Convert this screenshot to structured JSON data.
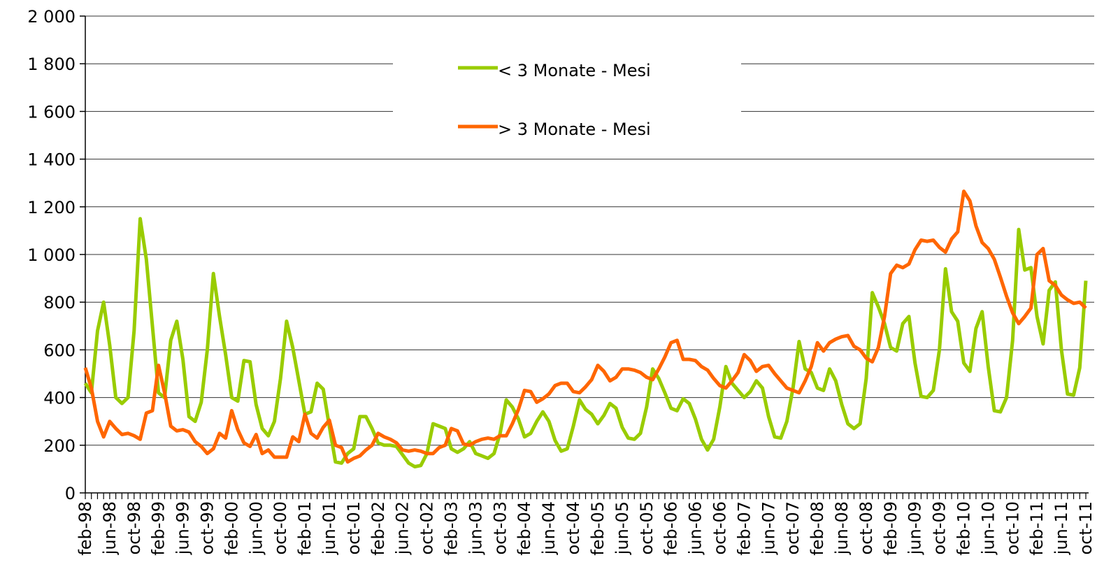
{
  "chart_data": {
    "type": "line",
    "categories": [
      "feb-98",
      null,
      null,
      null,
      "jun-98",
      null,
      null,
      null,
      "oct-98",
      null,
      null,
      null,
      "feb-99",
      null,
      null,
      null,
      "jun-99",
      null,
      null,
      null,
      "oct-99",
      null,
      null,
      null,
      "feb-00",
      null,
      null,
      null,
      "jun-00",
      null,
      null,
      null,
      "oct-00",
      null,
      null,
      null,
      "feb-01",
      null,
      null,
      null,
      "jun-01",
      null,
      null,
      null,
      "oct-01",
      null,
      null,
      null,
      "feb-02",
      null,
      null,
      null,
      "jun-02",
      null,
      null,
      null,
      "oct-02",
      null,
      null,
      null,
      "feb-03",
      null,
      null,
      null,
      "jun-03",
      null,
      null,
      null,
      "oct-03",
      null,
      null,
      null,
      "feb-04",
      null,
      null,
      null,
      "jun-04",
      null,
      null,
      null,
      "oct-04",
      null,
      null,
      null,
      "feb-05",
      null,
      null,
      null,
      "jun-05",
      null,
      null,
      null,
      "oct-05",
      null,
      null,
      null,
      "feb-06",
      null,
      null,
      null,
      "jun-06",
      null,
      null,
      null,
      "oct-06",
      null,
      null,
      null,
      "feb-07",
      null,
      null,
      null,
      "jun-07",
      null,
      null,
      null,
      "oct-07",
      null,
      null,
      null,
      "feb-08",
      null,
      null,
      null,
      "jun-08",
      null,
      null,
      null,
      "oct-08",
      null,
      null,
      null,
      "feb-09",
      null,
      null,
      null,
      "jun-09",
      null,
      null,
      null,
      "oct-09",
      null,
      null,
      null,
      "feb-10",
      null,
      null,
      null,
      "jun-10",
      null,
      null,
      null,
      "oct-10",
      null,
      null,
      null,
      "feb-11",
      null,
      null,
      null,
      "jun-11",
      null,
      null,
      null,
      "oct-11"
    ],
    "series": [
      {
        "name": "< 3 Monate - Mesi",
        "color": "#99cc00",
        "values": [
          460,
          420,
          680,
          800,
          620,
          400,
          375,
          400,
          680,
          1150,
          980,
          700,
          420,
          400,
          640,
          720,
          560,
          320,
          300,
          380,
          600,
          920,
          740,
          580,
          400,
          385,
          555,
          550,
          370,
          270,
          240,
          300,
          480,
          720,
          610,
          470,
          330,
          340,
          460,
          435,
          280,
          130,
          125,
          165,
          185,
          320,
          320,
          270,
          210,
          200,
          200,
          195,
          160,
          125,
          110,
          115,
          165,
          290,
          280,
          270,
          185,
          170,
          185,
          215,
          165,
          155,
          145,
          165,
          250,
          390,
          360,
          310,
          235,
          250,
          300,
          340,
          300,
          220,
          175,
          185,
          280,
          390,
          350,
          330,
          290,
          325,
          375,
          355,
          275,
          230,
          225,
          250,
          360,
          520,
          480,
          420,
          355,
          345,
          395,
          375,
          310,
          225,
          180,
          225,
          360,
          530,
          460,
          430,
          400,
          425,
          470,
          440,
          320,
          235,
          230,
          300,
          440,
          635,
          520,
          505,
          440,
          430,
          520,
          470,
          370,
          290,
          270,
          290,
          480,
          840,
          780,
          710,
          610,
          595,
          710,
          740,
          545,
          405,
          400,
          430,
          600,
          940,
          760,
          720,
          545,
          510,
          690,
          760,
          530,
          345,
          340,
          400,
          640,
          1105,
          935,
          945,
          740,
          625,
          850,
          885,
          600,
          415,
          410,
          525,
          890
        ]
      },
      {
        "name": "> 3 Monate - Mesi",
        "color": "#ff6600",
        "values": [
          525,
          440,
          300,
          235,
          300,
          270,
          245,
          250,
          240,
          225,
          335,
          345,
          535,
          420,
          280,
          260,
          265,
          255,
          215,
          195,
          165,
          185,
          250,
          230,
          345,
          265,
          210,
          195,
          245,
          165,
          180,
          150,
          150,
          150,
          235,
          215,
          330,
          250,
          230,
          275,
          305,
          200,
          190,
          130,
          145,
          155,
          180,
          200,
          250,
          235,
          225,
          210,
          180,
          175,
          180,
          175,
          165,
          165,
          190,
          200,
          270,
          260,
          205,
          200,
          215,
          225,
          230,
          225,
          240,
          240,
          290,
          350,
          430,
          425,
          380,
          395,
          415,
          450,
          460,
          460,
          425,
          420,
          445,
          475,
          535,
          510,
          470,
          485,
          520,
          520,
          515,
          505,
          485,
          475,
          520,
          570,
          630,
          640,
          560,
          560,
          555,
          530,
          515,
          480,
          450,
          440,
          470,
          505,
          580,
          555,
          510,
          530,
          535,
          500,
          470,
          440,
          430,
          420,
          470,
          530,
          630,
          595,
          630,
          645,
          655,
          660,
          615,
          600,
          565,
          550,
          610,
          740,
          920,
          955,
          945,
          960,
          1020,
          1060,
          1055,
          1060,
          1030,
          1010,
          1065,
          1095,
          1265,
          1225,
          1120,
          1050,
          1025,
          980,
          905,
          825,
          755,
          710,
          740,
          775,
          1000,
          1025,
          890,
          870,
          830,
          810,
          795,
          800,
          775
        ]
      }
    ],
    "ylim": [
      0,
      2000
    ],
    "yticks": [
      0,
      200,
      400,
      600,
      800,
      {
        "value": 1000,
        "label": "1 000"
      },
      {
        "value": 1200,
        "label": "1 200"
      },
      {
        "value": 1400,
        "label": "1 400"
      },
      {
        "value": 1600,
        "label": "1 600"
      },
      {
        "value": 1800,
        "label": "1 800"
      },
      {
        "value": 2000,
        "label": "2 000"
      }
    ],
    "grid": true,
    "legend": "top"
  }
}
